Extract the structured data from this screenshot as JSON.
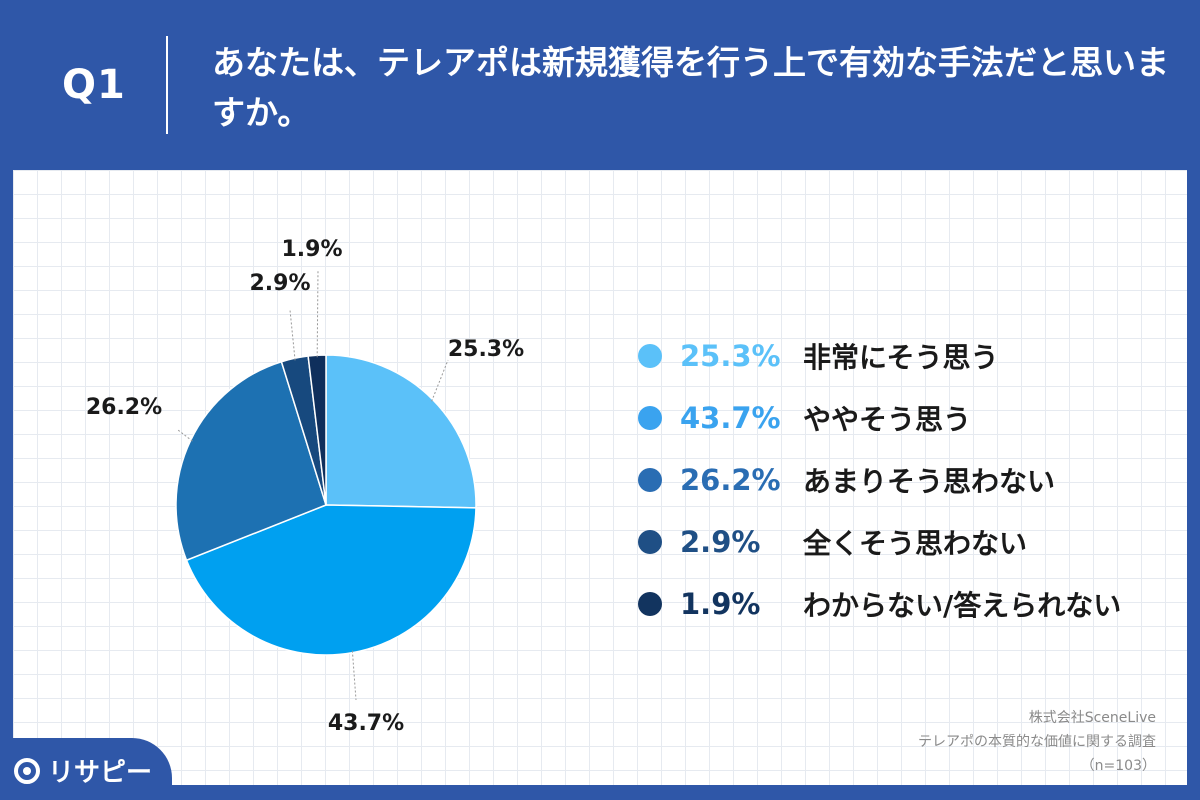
{
  "header": {
    "q_label": "Q1",
    "question": "あなたは、テレアポは新規獲得を行う上で有効な手法だと思いますか。"
  },
  "chart_data": {
    "type": "pie",
    "title": "",
    "slices": [
      {
        "label": "非常にそう思う",
        "value": 25.3,
        "display": "25.3%",
        "color": "#5bc1f9"
      },
      {
        "label": "ややそう思う",
        "value": 43.7,
        "display": "43.7%",
        "color": "#00a0f0"
      },
      {
        "label": "あまりそう思わない",
        "value": 26.2,
        "display": "26.2%",
        "color": "#1d71b2"
      },
      {
        "label": "全くそう思わない",
        "value": 2.9,
        "display": "2.9%",
        "color": "#17497e"
      },
      {
        "label": "わからない/答えられない",
        "value": 1.9,
        "display": "1.9%",
        "color": "#0f2f5c"
      }
    ],
    "legend_position": "right"
  },
  "legend": {
    "items": [
      {
        "value": "25.3%",
        "label": "非常にそう思う",
        "color": "#5bc1f9"
      },
      {
        "value": "43.7%",
        "label": "ややそう思う",
        "color": "#3aa3ef"
      },
      {
        "value": "26.2%",
        "label": "あまりそう思わない",
        "color": "#2a6db3"
      },
      {
        "value": "2.9%",
        "label": "全くそう思わない",
        "color": "#1f4f85"
      },
      {
        "value": "1.9%",
        "label": "わからない/答えられない",
        "color": "#12345f"
      }
    ]
  },
  "source": {
    "line1": "株式会社SceneLive",
    "line2": "テレアポの本質的な価値に関する調査",
    "line3": "（n=103）"
  },
  "brand": {
    "name": "リサピー"
  }
}
